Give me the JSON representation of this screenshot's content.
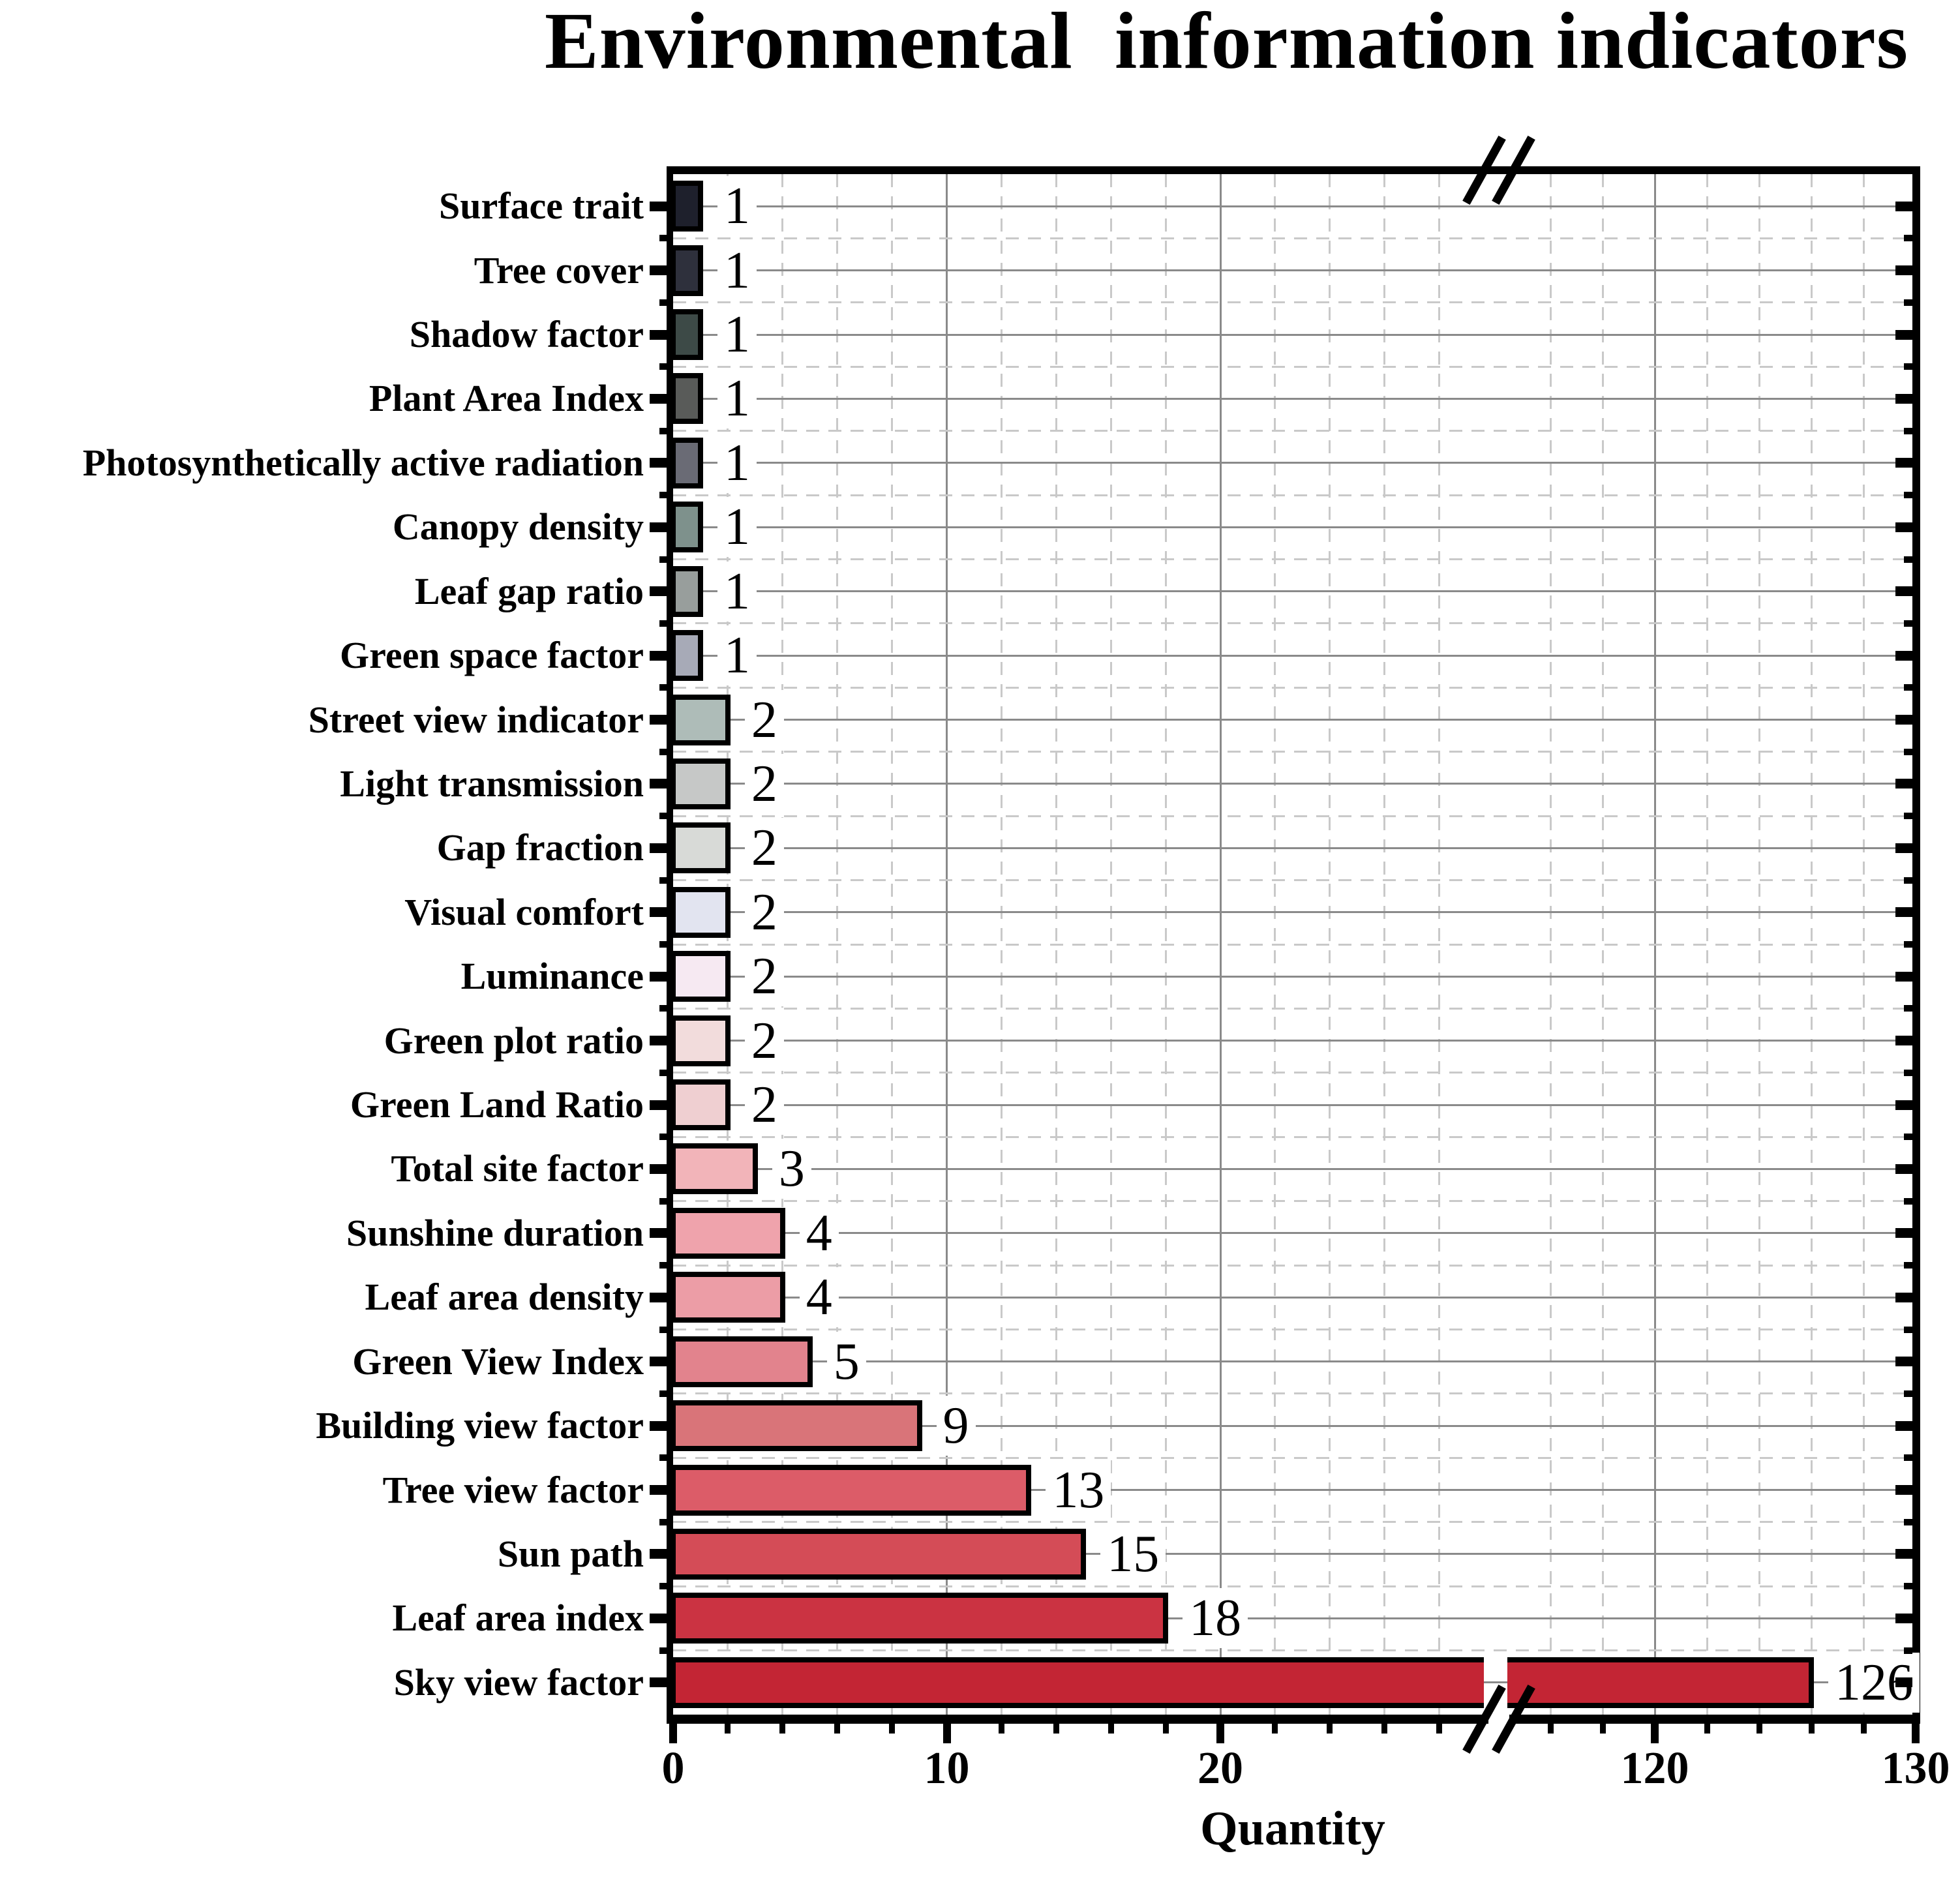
{
  "title": "Environmental  information indicators",
  "xlabel": "Quantity",
  "chart_data": {
    "type": "bar",
    "orientation": "horizontal",
    "title": "Environmental  information indicators",
    "xlabel": "Quantity",
    "ylabel": "",
    "categories": [
      "Surface trait",
      "Tree cover",
      "Shadow factor",
      "Plant Area Index",
      "Photosynthetically active radiation",
      "Canopy density",
      "Leaf gap ratio",
      "Green space factor",
      "Street view indicator",
      "Light transmission",
      "Gap fraction",
      "Visual comfort",
      "Luminance",
      "Green plot ratio",
      "Green Land Ratio",
      "Total site factor",
      "Sunshine duration",
      "Leaf area density",
      "Green View Index",
      "Building view factor",
      "Tree view factor",
      "Sun path",
      "Leaf area index",
      "Sky view factor"
    ],
    "values": [
      1,
      1,
      1,
      1,
      1,
      1,
      1,
      1,
      2,
      2,
      2,
      2,
      2,
      2,
      2,
      3,
      4,
      4,
      5,
      9,
      13,
      15,
      18,
      126
    ],
    "bar_colors": [
      "#1e202c",
      "#2e303c",
      "#3d4a47",
      "#595b59",
      "#6a6b75",
      "#7e918c",
      "#989e9c",
      "#a7aab7",
      "#aebcb8",
      "#c6c8c7",
      "#d8dad7",
      "#e2e4f0",
      "#f6e9f2",
      "#f2dcdc",
      "#efcfd1",
      "#f2b4b9",
      "#efa3ac",
      "#ec9da6",
      "#e2838d",
      "#d97479",
      "#dc5c68",
      "#d44c57",
      "#cb3342",
      "#c32534"
    ],
    "axis": {
      "x_major_ticks": [
        0,
        10,
        20,
        120,
        130
      ],
      "x_major_tick_labels": [
        "0",
        "10",
        "20",
        "120",
        "130"
      ],
      "x_minor_ticks": [
        2,
        4,
        6,
        8,
        12,
        14,
        16,
        18,
        22,
        24,
        26,
        28,
        116,
        118,
        122,
        124,
        126,
        128
      ],
      "x_solid_gridline_values": [
        10,
        20,
        120
      ],
      "axis_break": {
        "between": [
          20,
          120
        ],
        "left_segment_max": 30,
        "right_segment_min": 115
      },
      "grid": "on",
      "legend": "none"
    },
    "colors": {
      "grid_solid": "#8a8a8a",
      "grid_dashed": "#c9c9c9",
      "bar_edge": "#000000",
      "spine": "#000000",
      "background": "#ffffff",
      "text": "#000000"
    }
  }
}
